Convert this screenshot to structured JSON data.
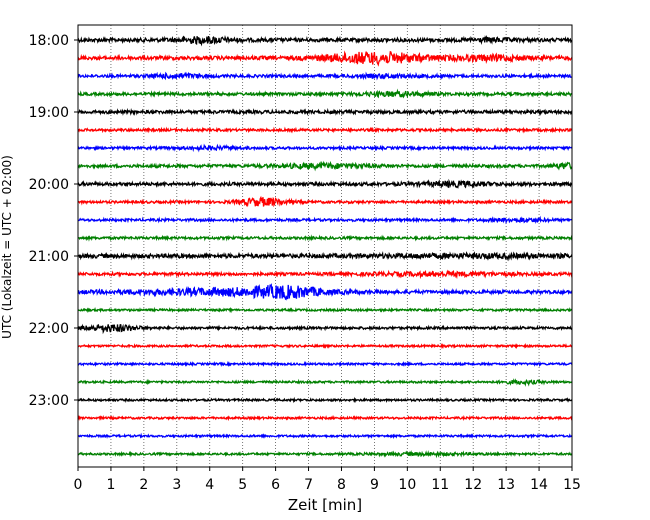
{
  "chart_data": {
    "type": "line",
    "title": "",
    "xlabel": "Zeit  [min]",
    "ylabel": "UTC (Lokalzeit = UTC + 02:00)",
    "xlim": [
      0,
      15
    ],
    "x_ticks": [
      "0",
      "1",
      "2",
      "3",
      "4",
      "5",
      "6",
      "7",
      "8",
      "9",
      "10",
      "11",
      "12",
      "13",
      "14",
      "15"
    ],
    "y_tick_labels": [
      "18:00",
      "19:00",
      "20:00",
      "21:00",
      "22:00",
      "23:00"
    ],
    "grid": "vertical dotted at each minute",
    "trace_interval_minutes": 15,
    "trace_colors_cycle": [
      "#000000",
      "#ff0000",
      "#0000ff",
      "#008000"
    ],
    "series": [
      {
        "start": "18:00",
        "color": "#000000",
        "noise": 0.9,
        "events": [
          {
            "t": 3.8,
            "w": 0.8,
            "a": 1.2
          },
          {
            "t": 12.5,
            "w": 0.6,
            "a": 0.6
          }
        ]
      },
      {
        "start": "18:15",
        "color": "#ff0000",
        "noise": 0.9,
        "events": [
          {
            "t": 9.0,
            "w": 1.5,
            "a": 2.5
          },
          {
            "t": 12.5,
            "w": 1.2,
            "a": 1.0
          }
        ]
      },
      {
        "start": "18:30",
        "color": "#0000ff",
        "noise": 0.7,
        "events": [
          {
            "t": 3.0,
            "w": 0.8,
            "a": 0.8
          },
          {
            "t": 9.5,
            "w": 1.0,
            "a": 0.6
          }
        ]
      },
      {
        "start": "18:45",
        "color": "#008000",
        "noise": 0.7,
        "events": [
          {
            "t": 9.6,
            "w": 1.0,
            "a": 0.9
          }
        ]
      },
      {
        "start": "19:00",
        "color": "#000000",
        "noise": 0.8,
        "events": []
      },
      {
        "start": "19:15",
        "color": "#ff0000",
        "noise": 0.6,
        "events": []
      },
      {
        "start": "19:30",
        "color": "#0000ff",
        "noise": 0.6,
        "events": [
          {
            "t": 4.0,
            "w": 0.8,
            "a": 0.6
          }
        ]
      },
      {
        "start": "19:45",
        "color": "#008000",
        "noise": 0.7,
        "events": [
          {
            "t": 7.5,
            "w": 1.5,
            "a": 0.9
          },
          {
            "t": 14.8,
            "w": 0.3,
            "a": 1.2
          }
        ]
      },
      {
        "start": "20:00",
        "color": "#000000",
        "noise": 0.8,
        "events": [
          {
            "t": 11.5,
            "w": 1.0,
            "a": 0.9
          }
        ]
      },
      {
        "start": "20:15",
        "color": "#ff0000",
        "noise": 0.6,
        "events": [
          {
            "t": 5.6,
            "w": 0.7,
            "a": 1.8
          }
        ]
      },
      {
        "start": "20:30",
        "color": "#0000ff",
        "noise": 0.6,
        "events": [
          {
            "t": 13.4,
            "w": 0.8,
            "a": 0.7
          }
        ]
      },
      {
        "start": "20:45",
        "color": "#008000",
        "noise": 0.6,
        "events": []
      },
      {
        "start": "21:00",
        "color": "#000000",
        "noise": 1.0,
        "events": [
          {
            "t": 12.0,
            "w": 3.0,
            "a": 0.5
          }
        ]
      },
      {
        "start": "21:15",
        "color": "#ff0000",
        "noise": 0.7,
        "events": [
          {
            "t": 11.0,
            "w": 2.0,
            "a": 0.7
          }
        ]
      },
      {
        "start": "21:30",
        "color": "#0000ff",
        "noise": 0.8,
        "events": [
          {
            "t": 4.5,
            "w": 3.0,
            "a": 1.4
          },
          {
            "t": 6.3,
            "w": 1.0,
            "a": 2.0
          }
        ]
      },
      {
        "start": "21:45",
        "color": "#008000",
        "noise": 0.5,
        "events": []
      },
      {
        "start": "22:00",
        "color": "#000000",
        "noise": 0.6,
        "events": [
          {
            "t": 1.0,
            "w": 0.8,
            "a": 1.6
          }
        ]
      },
      {
        "start": "22:15",
        "color": "#ff0000",
        "noise": 0.5,
        "events": []
      },
      {
        "start": "22:30",
        "color": "#0000ff",
        "noise": 0.5,
        "events": []
      },
      {
        "start": "22:45",
        "color": "#008000",
        "noise": 0.5,
        "events": [
          {
            "t": 13.5,
            "w": 0.6,
            "a": 0.7
          }
        ]
      },
      {
        "start": "23:00",
        "color": "#000000",
        "noise": 0.5,
        "events": []
      },
      {
        "start": "23:15",
        "color": "#ff0000",
        "noise": 0.5,
        "events": []
      },
      {
        "start": "23:30",
        "color": "#0000ff",
        "noise": 0.5,
        "events": []
      },
      {
        "start": "23:45",
        "color": "#008000",
        "noise": 0.5,
        "events": [
          {
            "t": 10.5,
            "w": 1.5,
            "a": 0.5
          }
        ]
      }
    ]
  }
}
